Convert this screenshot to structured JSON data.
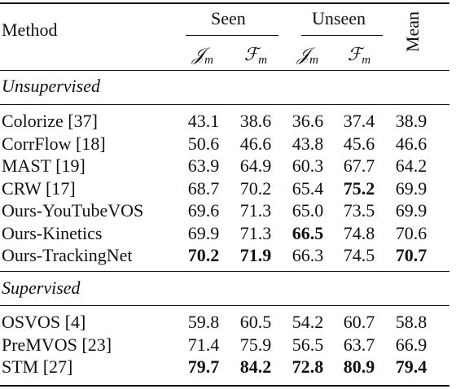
{
  "header": {
    "method": "Method",
    "seen": "Seen",
    "unseen": "Unseen",
    "mean": "Mean",
    "j_sym": "𝒥",
    "f_sym": "ℱ",
    "sub": "m"
  },
  "sections": [
    {
      "title": "Unsupervised",
      "rows": [
        {
          "method": "Colorize [37]",
          "v": [
            "43.1",
            "38.6",
            "36.6",
            "37.4",
            "38.9"
          ],
          "bold": [
            false,
            false,
            false,
            false,
            false
          ]
        },
        {
          "method": "CorrFlow [18]",
          "v": [
            "50.6",
            "46.6",
            "43.8",
            "45.6",
            "46.6"
          ],
          "bold": [
            false,
            false,
            false,
            false,
            false
          ]
        },
        {
          "method": "MAST [19]",
          "v": [
            "63.9",
            "64.9",
            "60.3",
            "67.7",
            "64.2"
          ],
          "bold": [
            false,
            false,
            false,
            false,
            false
          ]
        },
        {
          "method": "CRW [17]",
          "v": [
            "68.7",
            "70.2",
            "65.4",
            "75.2",
            "69.9"
          ],
          "bold": [
            false,
            false,
            false,
            true,
            false
          ]
        },
        {
          "method": "Ours-YouTubeVOS",
          "v": [
            "69.6",
            "71.3",
            "65.0",
            "73.5",
            "69.9"
          ],
          "bold": [
            false,
            false,
            false,
            false,
            false
          ]
        },
        {
          "method": "Ours-Kinetics",
          "v": [
            "69.9",
            "71.3",
            "66.5",
            "74.8",
            "70.6"
          ],
          "bold": [
            false,
            false,
            true,
            false,
            false
          ]
        },
        {
          "method": "Ours-TrackingNet",
          "v": [
            "70.2",
            "71.9",
            "66.3",
            "74.5",
            "70.7"
          ],
          "bold": [
            true,
            true,
            false,
            false,
            true
          ]
        }
      ]
    },
    {
      "title": "Supervised",
      "rows": [
        {
          "method": "OSVOS [4]",
          "v": [
            "59.8",
            "60.5",
            "54.2",
            "60.7",
            "58.8"
          ],
          "bold": [
            false,
            false,
            false,
            false,
            false
          ]
        },
        {
          "method": "PreMVOS [23]",
          "v": [
            "71.4",
            "75.9",
            "56.5",
            "63.7",
            "66.9"
          ],
          "bold": [
            false,
            false,
            false,
            false,
            false
          ]
        },
        {
          "method": "STM [27]",
          "v": [
            "79.7",
            "84.2",
            "72.8",
            "80.9",
            "79.4"
          ],
          "bold": [
            true,
            true,
            true,
            true,
            true
          ]
        }
      ]
    }
  ]
}
